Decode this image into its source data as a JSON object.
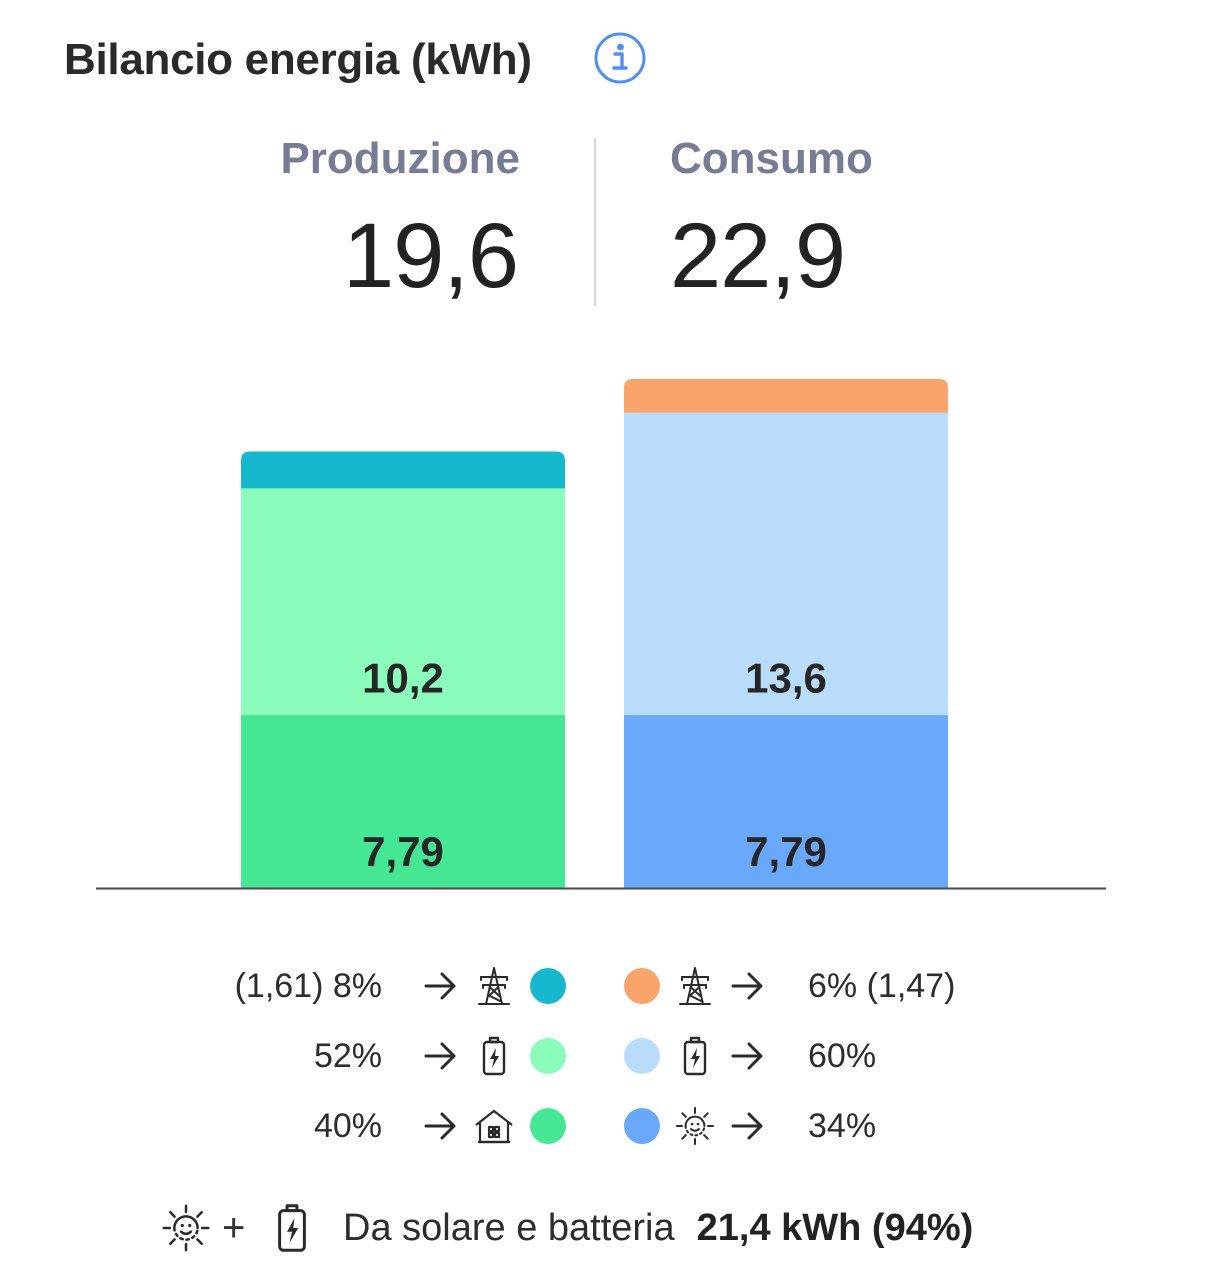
{
  "header": {
    "title": "Bilancio energia (kWh)",
    "info_icon": "info-circle-icon",
    "info_color": "#4f8ff0"
  },
  "totals": {
    "production_label": "Produzione",
    "production_value": "19,6",
    "consumption_label": "Consumo",
    "consumption_value": "22,9"
  },
  "chart_data": {
    "type": "bar",
    "stacked": true,
    "categories": [
      "Produzione",
      "Consumo"
    ],
    "bars": [
      {
        "category": "Produzione",
        "total": 19.6,
        "segments": [
          {
            "value": 7.79,
            "label": "7,79",
            "color": "#45e795"
          },
          {
            "value": 10.2,
            "label": "10,2",
            "color": "#8bfcbb"
          },
          {
            "value": 1.61,
            "label": "",
            "color": "#16b8cd"
          }
        ]
      },
      {
        "category": "Consumo",
        "total": 22.9,
        "segments": [
          {
            "value": 7.79,
            "label": "7,79",
            "color": "#6aa8fc"
          },
          {
            "value": 13.6,
            "label": "13,6",
            "color": "#badcfb"
          },
          {
            "value": 1.47,
            "label": "",
            "color": "#f9a46b"
          }
        ]
      }
    ],
    "ylim": [
      0,
      22.9
    ],
    "axis_color": "#4a4a4a",
    "grid": false
  },
  "legend": {
    "rows": [
      {
        "left_text": "(1,61) 8%",
        "left_icon": "transmission-tower-icon",
        "left_color": "#16b8cd",
        "right_color": "#f9a46b",
        "right_icon": "transmission-tower-icon",
        "right_text": "6% (1,47)"
      },
      {
        "left_text": "52%",
        "left_icon": "battery-icon",
        "left_color": "#8bfcbb",
        "right_color": "#badcfb",
        "right_icon": "battery-icon",
        "right_text": "60%"
      },
      {
        "left_text": "40%",
        "left_icon": "home-icon",
        "left_color": "#45e795",
        "right_color": "#6aa8fc",
        "right_icon": "sun-icon",
        "right_text": "34%"
      }
    ]
  },
  "footer": {
    "plus": "+",
    "text": "Da solare e batteria",
    "value": "21,4 kWh (94%)"
  }
}
